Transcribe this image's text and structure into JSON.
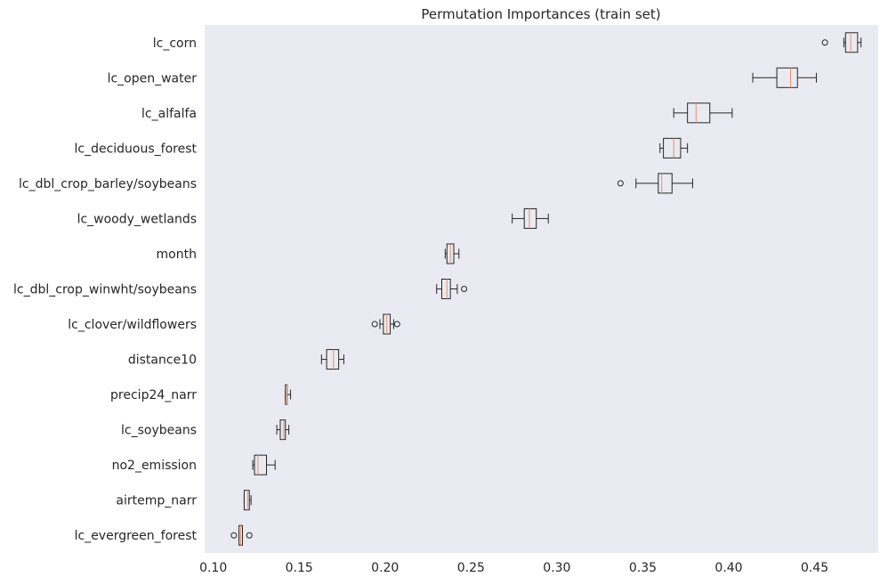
{
  "chart_data": {
    "type": "boxplot",
    "orientation": "horizontal",
    "title": "Permutation Importances (train set)",
    "xlabel": "",
    "ylabel": "",
    "xlim": [
      0.095,
      0.487
    ],
    "xticks": [
      0.1,
      0.15,
      0.2,
      0.25,
      0.3,
      0.35,
      0.4,
      0.45
    ],
    "xtick_labels": [
      "0.10",
      "0.15",
      "0.20",
      "0.25",
      "0.30",
      "0.35",
      "0.40",
      "0.45"
    ],
    "grid": false,
    "colors": {
      "plot_background": "#eaeaf2",
      "box_edge": "#262626",
      "box_fill": "#eaeaf2",
      "median": "#e8926a",
      "flier": "#262626"
    },
    "categories": [
      "lc_corn",
      "lc_open_water",
      "lc_alfalfa",
      "lc_deciduous_forest",
      "lc_dbl_crop_barley/soybeans",
      "lc_woody_wetlands",
      "month",
      "lc_dbl_crop_winwht/soybeans",
      "lc_clover/wildflowers",
      "distance10",
      "precip24_narr",
      "lc_soybeans",
      "no2_emission",
      "airtemp_narr",
      "lc_evergreen_forest"
    ],
    "boxes": [
      {
        "whislo": 0.467,
        "q1": 0.468,
        "med": 0.471,
        "q3": 0.475,
        "whishi": 0.477,
        "fliers": [
          0.456
        ]
      },
      {
        "whislo": 0.414,
        "q1": 0.428,
        "med": 0.436,
        "q3": 0.44,
        "whishi": 0.451,
        "fliers": []
      },
      {
        "whislo": 0.368,
        "q1": 0.376,
        "med": 0.381,
        "q3": 0.389,
        "whishi": 0.402,
        "fliers": []
      },
      {
        "whislo": 0.36,
        "q1": 0.362,
        "med": 0.368,
        "q3": 0.372,
        "whishi": 0.376,
        "fliers": []
      },
      {
        "whislo": 0.346,
        "q1": 0.359,
        "med": 0.361,
        "q3": 0.367,
        "whishi": 0.379,
        "fliers": [
          0.337
        ]
      },
      {
        "whislo": 0.274,
        "q1": 0.281,
        "med": 0.284,
        "q3": 0.288,
        "whishi": 0.295,
        "fliers": []
      },
      {
        "whislo": 0.235,
        "q1": 0.236,
        "med": 0.238,
        "q3": 0.24,
        "whishi": 0.243,
        "fliers": []
      },
      {
        "whislo": 0.23,
        "q1": 0.233,
        "med": 0.236,
        "q3": 0.238,
        "whishi": 0.242,
        "fliers": [
          0.246
        ]
      },
      {
        "whislo": 0.197,
        "q1": 0.199,
        "med": 0.201,
        "q3": 0.203,
        "whishi": 0.205,
        "fliers": [
          0.194,
          0.207
        ]
      },
      {
        "whislo": 0.163,
        "q1": 0.166,
        "med": 0.17,
        "q3": 0.173,
        "whishi": 0.176,
        "fliers": []
      },
      {
        "whislo": 0.142,
        "q1": 0.142,
        "med": 0.143,
        "q3": 0.143,
        "whishi": 0.145,
        "fliers": []
      },
      {
        "whislo": 0.137,
        "q1": 0.139,
        "med": 0.141,
        "q3": 0.142,
        "whishi": 0.144,
        "fliers": []
      },
      {
        "whislo": 0.123,
        "q1": 0.124,
        "med": 0.126,
        "q3": 0.131,
        "whishi": 0.136,
        "fliers": []
      },
      {
        "whislo": 0.118,
        "q1": 0.118,
        "med": 0.12,
        "q3": 0.121,
        "whishi": 0.122,
        "fliers": []
      },
      {
        "whislo": 0.115,
        "q1": 0.115,
        "med": 0.116,
        "q3": 0.117,
        "whishi": 0.117,
        "fliers": [
          0.112,
          0.121
        ]
      }
    ]
  }
}
